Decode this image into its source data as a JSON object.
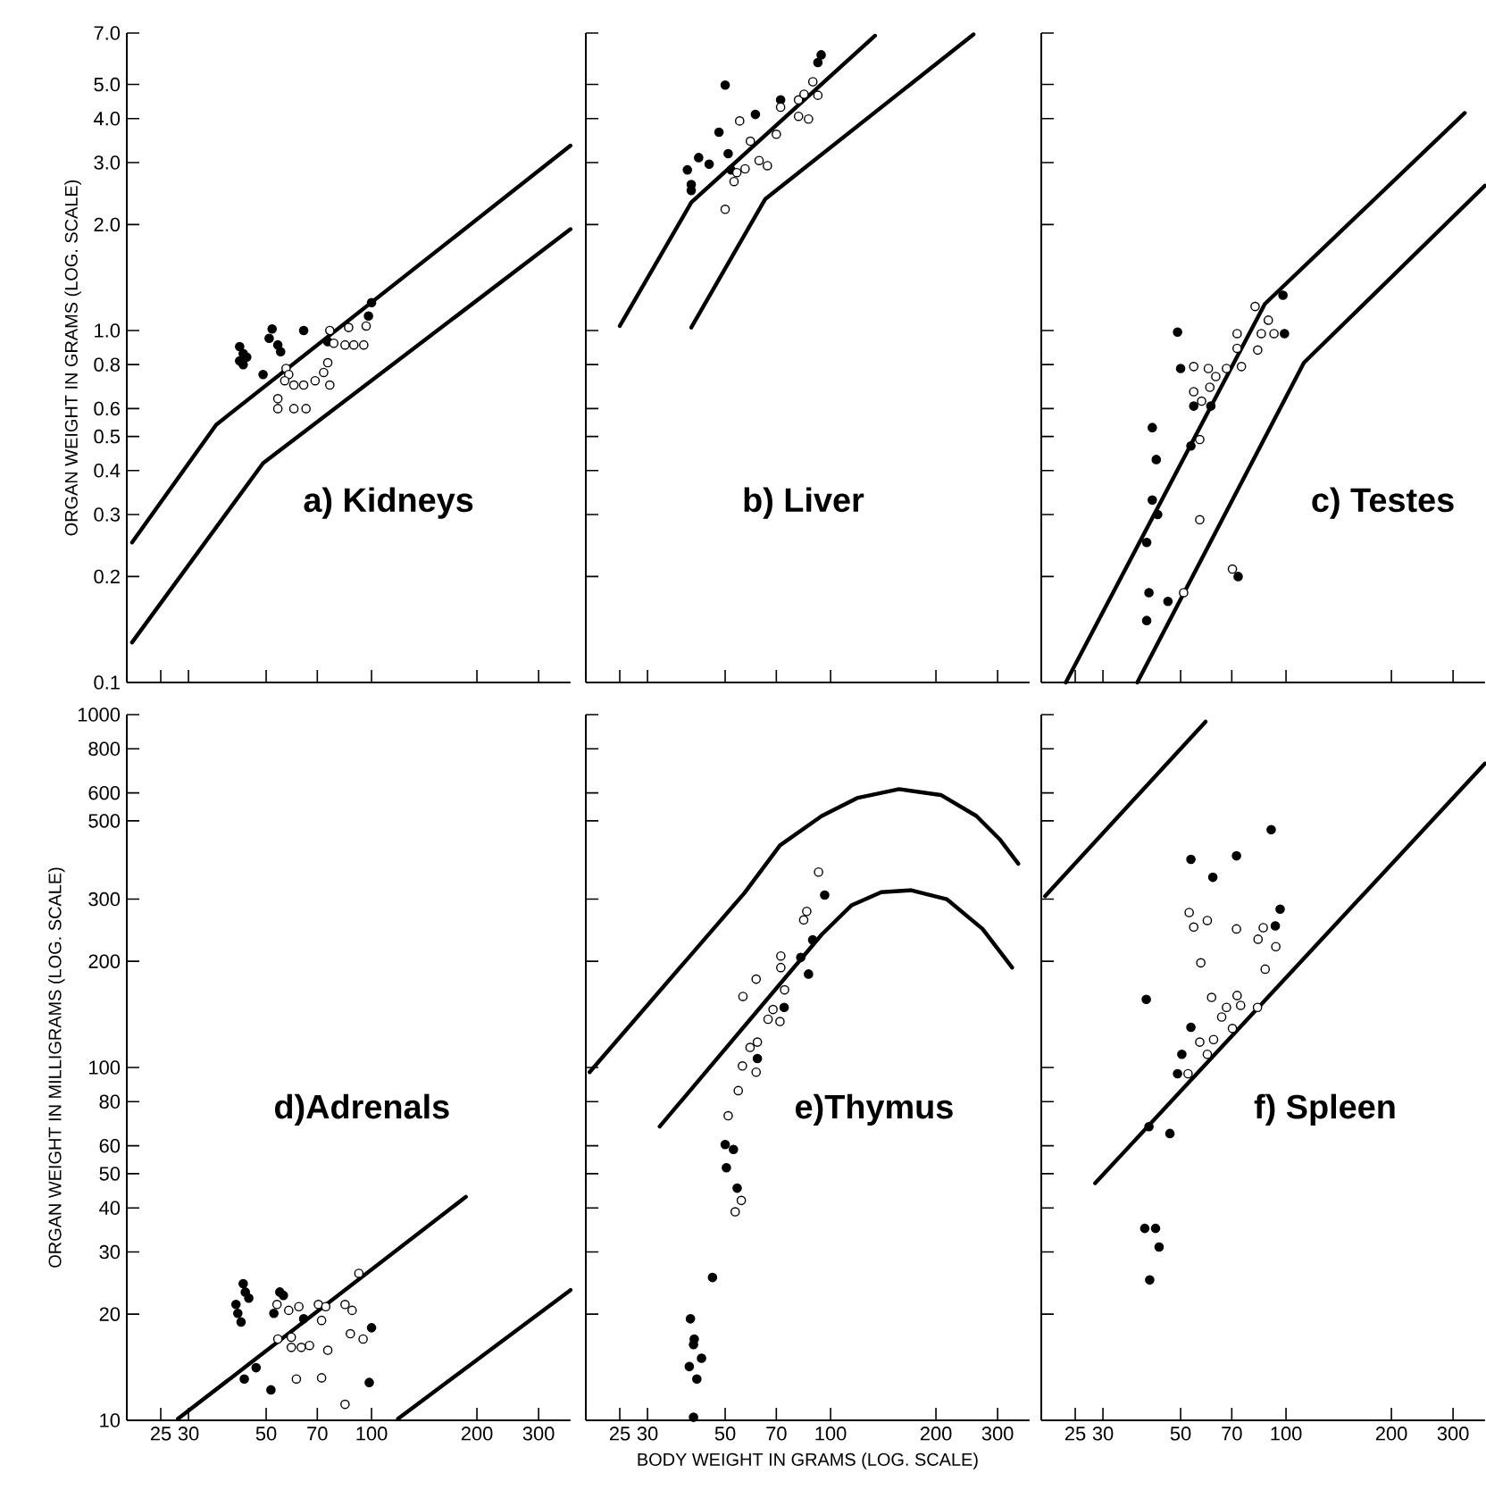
{
  "chart_data": [
    {
      "type": "scatter",
      "title": "a) Kidneys",
      "ylabel": "ORGAN WEIGHT IN GRAMS (LOG. SCALE)",
      "log": "xy",
      "tick_labels": "y",
      "xlim": [
        20,
        370
      ],
      "ylim": [
        0.1,
        7
      ],
      "xticks": [
        25,
        30,
        50,
        70,
        100,
        200,
        300
      ],
      "yticks": [
        {
          "value": 7,
          "label": "7.0"
        },
        {
          "value": 5,
          "label": "5.0"
        },
        {
          "value": 4,
          "label": "4.0"
        },
        {
          "value": 3,
          "label": "3.0"
        },
        {
          "value": 2,
          "label": "2.0"
        },
        {
          "value": 1,
          "label": "1.0"
        },
        0.8,
        0.6,
        0.5,
        0.4,
        0.3,
        0.2,
        0.1
      ],
      "series": [
        {
          "type": "line",
          "marker": "none",
          "color": "#000000",
          "x": [
            20.7,
            36,
            370
          ],
          "values": [
            0.25,
            0.54,
            3.35
          ]
        },
        {
          "type": "line",
          "marker": "none",
          "color": "#000000",
          "x": [
            20.7,
            49,
            370
          ],
          "values": [
            0.13,
            0.42,
            1.94
          ]
        },
        {
          "marker": "circle",
          "color": "#000000",
          "x": [
            42,
            43,
            42,
            44,
            43,
            49,
            51,
            52,
            54,
            55,
            64,
            75,
            100,
            98
          ],
          "values": [
            0.9,
            0.86,
            0.82,
            0.84,
            0.8,
            0.75,
            0.95,
            1.01,
            0.91,
            0.87,
            1.0,
            0.93,
            1.2,
            1.1
          ]
        },
        {
          "marker": "circle",
          "color": "#ffffff",
          "x": [
            57,
            58,
            56.5,
            60,
            64,
            69,
            73,
            76,
            75,
            54,
            54,
            60,
            65,
            76,
            78,
            84,
            89,
            95,
            86,
            96.5
          ],
          "values": [
            0.78,
            0.75,
            0.72,
            0.7,
            0.7,
            0.72,
            0.76,
            0.7,
            0.81,
            0.64,
            0.6,
            0.6,
            0.6,
            1.0,
            0.92,
            0.91,
            0.91,
            0.91,
            1.02,
            1.03
          ]
        }
      ]
    },
    {
      "type": "scatter",
      "title": "b) Liver",
      "log": "xy",
      "tick_labels": false,
      "xlim": [
        20,
        370
      ],
      "ylim": [
        0.1,
        7
      ],
      "xticks": [
        25,
        30,
        50,
        70,
        100,
        200,
        300
      ],
      "yticks": [
        7,
        5,
        4,
        3,
        2,
        1,
        0.8,
        0.6,
        0.5,
        0.4,
        0.3,
        0.2,
        0.1
      ],
      "series": [
        {
          "type": "line",
          "marker": "none",
          "color": "#000000",
          "x": [
            25,
            40,
            134
          ],
          "values": [
            1.03,
            2.31,
            6.88
          ]
        },
        {
          "type": "line",
          "marker": "none",
          "color": "#000000",
          "x": [
            40,
            65,
            256
          ],
          "values": [
            1.02,
            2.36,
            6.94
          ]
        },
        {
          "marker": "circle",
          "color": "#000000",
          "x": [
            50,
            39,
            40,
            40,
            42,
            45,
            48,
            51,
            52,
            61,
            72,
            94,
            92
          ],
          "values": [
            4.98,
            2.86,
            2.6,
            2.5,
            3.1,
            2.97,
            3.66,
            3.18,
            2.86,
            4.11,
            4.52,
            6.07,
            5.77
          ]
        },
        {
          "marker": "circle",
          "color": "#ffffff",
          "x": [
            55,
            59,
            53,
            54,
            57,
            62.5,
            66,
            70,
            50,
            72,
            81,
            84,
            89,
            92,
            81,
            86.5
          ],
          "values": [
            3.94,
            3.45,
            2.65,
            2.81,
            2.88,
            3.04,
            2.94,
            3.61,
            2.21,
            4.31,
            4.52,
            4.69,
            5.09,
            4.66,
            4.06,
            3.99
          ]
        }
      ]
    },
    {
      "type": "scatter",
      "title": "c) Testes",
      "log": "xy",
      "tick_labels": false,
      "xlim": [
        20,
        370
      ],
      "ylim": [
        0.1,
        7
      ],
      "xticks": [
        25,
        30,
        50,
        70,
        100,
        200,
        300
      ],
      "yticks": [
        7,
        5,
        4,
        3,
        2,
        1,
        0.8,
        0.6,
        0.5,
        0.4,
        0.3,
        0.2,
        0.1
      ],
      "series": [
        {
          "type": "line",
          "marker": "none",
          "color": "#000000",
          "x": [
            23.5,
            87,
            324
          ],
          "values": [
            0.1,
            1.19,
            4.15
          ]
        },
        {
          "type": "line",
          "marker": "none",
          "color": "#000000",
          "x": [
            37.6,
            112.5,
            370
          ],
          "values": [
            0.1,
            0.81,
            2.58
          ]
        },
        {
          "marker": "circle",
          "color": "#000000",
          "x": [
            49,
            50,
            54.5,
            61,
            53.5,
            41.5,
            42.6,
            41.5,
            43,
            40,
            40.6,
            46,
            40,
            73,
            98,
            99
          ],
          "values": [
            0.99,
            0.78,
            0.61,
            0.61,
            0.47,
            0.53,
            0.43,
            0.33,
            0.3,
            0.25,
            0.18,
            0.17,
            0.15,
            0.2,
            1.26,
            0.98
          ]
        },
        {
          "marker": "circle",
          "color": "#ffffff",
          "x": [
            54.5,
            60,
            63,
            67.6,
            74.6,
            72.5,
            72.5,
            81.6,
            89,
            85,
            92.4,
            83,
            54.5,
            57.4,
            60.6,
            56.7,
            56.7,
            51,
            70.3
          ],
          "values": [
            0.79,
            0.78,
            0.74,
            0.78,
            0.79,
            0.89,
            0.98,
            1.17,
            1.07,
            0.98,
            0.98,
            0.88,
            0.67,
            0.63,
            0.69,
            0.49,
            0.29,
            0.18,
            0.21
          ]
        }
      ]
    },
    {
      "type": "scatter",
      "title": "d)Adrenals",
      "ylabel": "ORGAN WEIGHT IN MILLIGRAMS (LOG. SCALE)",
      "log": "xy",
      "xlim": [
        20,
        370
      ],
      "ylim": [
        10,
        1000
      ],
      "xticks": [
        25,
        30,
        50,
        70,
        100,
        200,
        300
      ],
      "yticks": [
        1000,
        800,
        600,
        500,
        300,
        200,
        100,
        80,
        60,
        50,
        40,
        30,
        20,
        10
      ],
      "series": [
        {
          "type": "line",
          "marker": "none",
          "color": "#000000",
          "x": [
            28,
            186
          ],
          "values": [
            10.1,
            43
          ]
        },
        {
          "type": "line",
          "marker": "none",
          "color": "#000000",
          "x": [
            119,
            370
          ],
          "values": [
            10.1,
            23.4
          ]
        },
        {
          "marker": "circle",
          "color": "#000000",
          "x": [
            43,
            41,
            41.5,
            42.4,
            44.6,
            43.6,
            43.3,
            46.8,
            51.6,
            52.6,
            54.7,
            56,
            98.5,
            100,
            64
          ],
          "values": [
            24.4,
            21.3,
            20.1,
            19.0,
            22.2,
            23.1,
            13.1,
            14.1,
            12.2,
            20.1,
            23.1,
            22.6,
            12.8,
            18.3,
            19.4
          ]
        },
        {
          "marker": "circle",
          "color": "#ffffff",
          "x": [
            53.7,
            58,
            62,
            70.5,
            74,
            84,
            88,
            92,
            54,
            59,
            59,
            63,
            66.5,
            72,
            75,
            87,
            94.6,
            61,
            72,
            84
          ],
          "values": [
            21.3,
            20.5,
            21.0,
            21.3,
            21.0,
            21.3,
            20.5,
            26.1,
            17.0,
            17.2,
            16.1,
            16.1,
            16.3,
            19.2,
            15.8,
            17.6,
            17.0,
            13.1,
            13.2,
            11.1
          ]
        }
      ]
    },
    {
      "type": "scatter",
      "title": "e)Thymus",
      "xlabel": "BODY WEIGHT IN GRAMS (LOG. SCALE)",
      "log": "xy",
      "tick_labels": "x",
      "xlim": [
        20,
        370
      ],
      "ylim": [
        10,
        1000
      ],
      "xticks": [
        25,
        30,
        50,
        70,
        100,
        200,
        300
      ],
      "yticks": [
        1000,
        800,
        600,
        500,
        300,
        200,
        100,
        80,
        60,
        50,
        40,
        30,
        20,
        10
      ],
      "series": [
        {
          "type": "line",
          "marker": "none",
          "color": "#000000",
          "x": [
            20.5,
            56.7,
            71.7,
            94.3,
            119,
            157,
            206.5,
            261,
            305,
            343.7
          ],
          "values": [
            97,
            312,
            426,
            516,
            580,
            615,
            592,
            516,
            442,
            378
          ]
        },
        {
          "type": "line",
          "marker": "none",
          "color": "#000000",
          "x": [
            32.5,
            94.3,
            114.7,
            139.6,
            169.8,
            214.6,
            271.7,
            330
          ],
          "values": [
            68,
            238,
            288,
            314,
            318,
            300,
            247,
            192
          ]
        },
        {
          "marker": "circle",
          "color": "#000000",
          "x": [
            40.6,
            41.5,
            42.8,
            40.6,
            39.5,
            39.8,
            40.8,
            46,
            50.4,
            50,
            52.8,
            54.1,
            61.8,
            73.7,
            82.2,
            86.5,
            88.9,
            96.2
          ],
          "values": [
            10.2,
            13.1,
            15.0,
            16.4,
            14.2,
            19.4,
            17.0,
            25.4,
            52,
            60.5,
            58.6,
            45.5,
            106,
            148,
            205,
            184,
            230,
            308
          ]
        },
        {
          "marker": "circle",
          "color": "#ffffff",
          "x": [
            51,
            54.5,
            56,
            58.9,
            61.8,
            61.3,
            56.2,
            61.3,
            66.3,
            68.5,
            71.7,
            72.1,
            72.1,
            73.9,
            83.8,
            85.5,
            92.4,
            53.4,
            55.6
          ],
          "values": [
            73,
            86,
            101,
            114,
            118,
            97,
            159,
            178,
            137,
            146,
            135,
            207,
            192,
            166,
            262,
            277,
            358,
            39,
            42
          ]
        }
      ]
    },
    {
      "type": "scatter",
      "title": "f) Spleen",
      "log": "xy",
      "tick_labels": "x",
      "xlim": [
        20,
        370
      ],
      "ylim": [
        10,
        1000
      ],
      "xticks": [
        25,
        30,
        50,
        70,
        100,
        200,
        300
      ],
      "yticks": [
        1000,
        800,
        600,
        500,
        300,
        200,
        100,
        80,
        60,
        50,
        40,
        30,
        20,
        10
      ],
      "series": [
        {
          "type": "line",
          "marker": "none",
          "color": "#000000",
          "x": [
            20.5,
            58.9
          ],
          "values": [
            306,
            955
          ]
        },
        {
          "type": "line",
          "marker": "none",
          "color": "#000000",
          "x": [
            28.5,
            370
          ],
          "values": [
            47,
            727
          ]
        },
        {
          "marker": "circle",
          "color": "#000000",
          "x": [
            39.9,
            40.6,
            46.6,
            39.5,
            42.4,
            43.4,
            40.8,
            53.5,
            61.8,
            72.2,
            90.7,
            96.2,
            93.2,
            53.5,
            50.4,
            49
          ],
          "values": [
            156,
            68,
            65,
            35,
            35,
            31,
            25,
            389,
            346,
            398,
            472,
            281,
            252,
            130,
            109,
            96
          ]
        },
        {
          "marker": "circle",
          "color": "#ffffff",
          "x": [
            52.9,
            54.5,
            59.6,
            57.1,
            72.2,
            83.2,
            86.1,
            93.5,
            87.2,
            61.3,
            72.5,
            67.6,
            74.2,
            65.5,
            82.9,
            70.3,
            56.7,
            62.1,
            59.6,
            52.5
          ],
          "values": [
            275,
            250,
            261,
            198,
            247,
            231,
            249,
            220,
            190,
            158,
            160,
            148,
            150,
            139,
            148,
            129,
            118,
            120,
            109,
            96
          ]
        }
      ]
    }
  ]
}
